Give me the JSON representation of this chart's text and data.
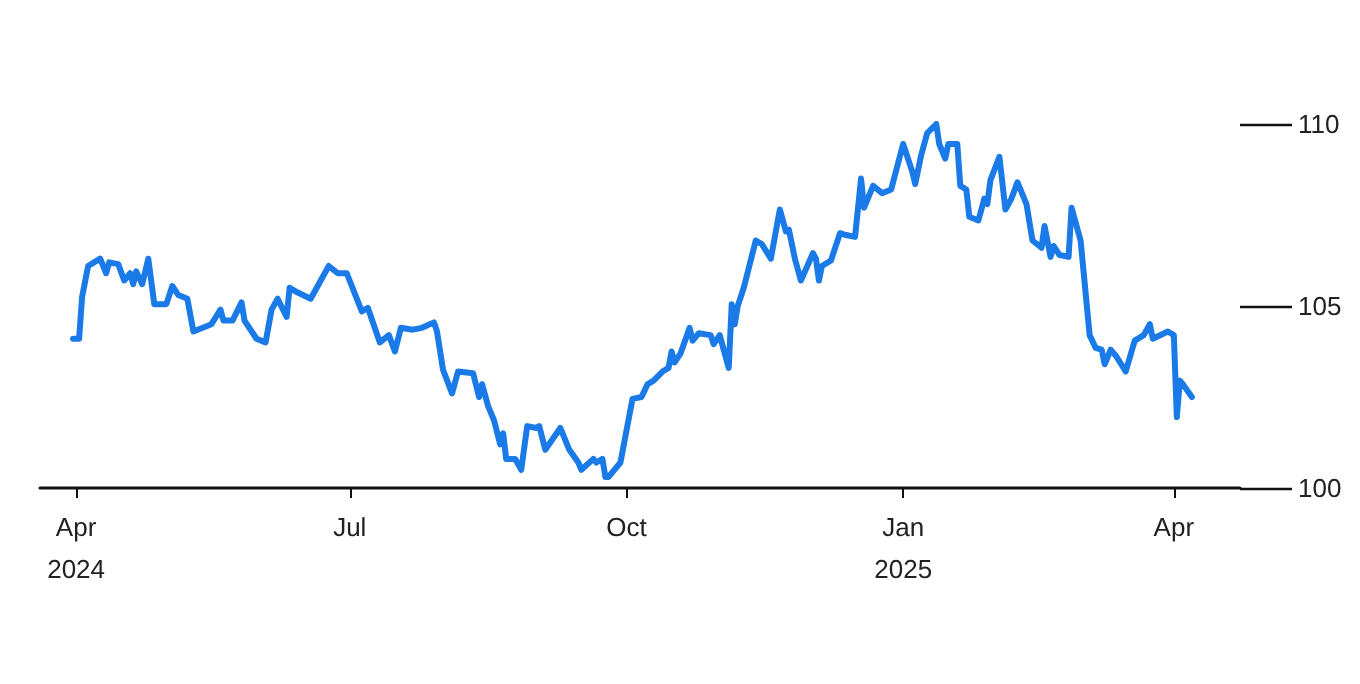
{
  "chart_data": {
    "type": "line",
    "x": [
      "2024-03-31",
      "2024-04-02",
      "2024-04-03",
      "2024-04-05",
      "2024-04-09",
      "2024-04-11",
      "2024-04-12",
      "2024-04-15",
      "2024-04-17",
      "2024-04-19",
      "2024-04-20",
      "2024-04-21",
      "2024-04-23",
      "2024-04-25",
      "2024-04-27",
      "2024-05-01",
      "2024-05-03",
      "2024-05-05",
      "2024-05-08",
      "2024-05-10",
      "2024-05-16",
      "2024-05-19",
      "2024-05-20",
      "2024-05-23",
      "2024-05-26",
      "2024-05-27",
      "2024-05-31",
      "2024-06-03",
      "2024-06-05",
      "2024-06-07",
      "2024-06-10",
      "2024-06-11",
      "2024-06-13",
      "2024-06-18",
      "2024-06-24",
      "2024-06-27",
      "2024-06-30",
      "2024-07-05",
      "2024-07-07",
      "2024-07-11",
      "2024-07-14",
      "2024-07-16",
      "2024-07-18",
      "2024-07-22",
      "2024-07-25",
      "2024-07-29",
      "2024-07-30",
      "2024-08-01",
      "2024-08-04",
      "2024-08-06",
      "2024-08-11",
      "2024-08-13",
      "2024-08-14",
      "2024-08-16",
      "2024-08-18",
      "2024-08-20",
      "2024-08-21",
      "2024-08-22",
      "2024-08-25",
      "2024-08-27",
      "2024-08-29",
      "2024-09-01",
      "2024-09-02",
      "2024-09-04",
      "2024-09-09",
      "2024-09-12",
      "2024-09-15",
      "2024-09-16",
      "2024-09-20",
      "2024-09-21",
      "2024-09-23",
      "2024-09-24",
      "2024-09-25",
      "2024-09-29",
      "2024-10-03",
      "2024-10-06",
      "2024-10-08",
      "2024-10-10",
      "2024-10-13",
      "2024-10-15",
      "2024-10-16",
      "2024-10-17",
      "2024-10-19",
      "2024-10-22",
      "2024-10-23",
      "2024-10-25",
      "2024-10-29",
      "2024-10-30",
      "2024-11-01",
      "2024-11-04",
      "2024-11-05",
      "2024-11-06",
      "2024-11-07",
      "2024-11-09",
      "2024-11-13",
      "2024-11-15",
      "2024-11-18",
      "2024-11-21",
      "2024-11-23",
      "2024-11-24",
      "2024-11-26",
      "2024-11-28",
      "2024-12-02",
      "2024-12-03",
      "2024-12-04",
      "2024-12-05",
      "2024-12-08",
      "2024-12-11",
      "2024-12-13",
      "2024-12-16",
      "2024-12-18",
      "2024-12-19",
      "2024-12-22",
      "2024-12-25",
      "2024-12-28",
      "2025-01-01",
      "2025-01-04",
      "2025-01-05",
      "2025-01-07",
      "2025-01-09",
      "2025-01-12",
      "2025-01-13",
      "2025-01-15",
      "2025-01-16",
      "2025-01-19",
      "2025-01-20",
      "2025-01-22",
      "2025-01-23",
      "2025-01-26",
      "2025-01-28",
      "2025-01-29",
      "2025-01-30",
      "2025-02-02",
      "2025-02-04",
      "2025-02-06",
      "2025-02-08",
      "2025-02-11",
      "2025-02-13",
      "2025-02-16",
      "2025-02-17",
      "2025-02-19",
      "2025-02-20",
      "2025-02-22",
      "2025-02-25",
      "2025-02-26",
      "2025-03-01",
      "2025-03-04",
      "2025-03-06",
      "2025-03-08",
      "2025-03-09",
      "2025-03-11",
      "2025-03-13",
      "2025-03-16",
      "2025-03-19",
      "2025-03-22",
      "2025-03-24",
      "2025-03-25",
      "2025-03-30",
      "2025-04-01",
      "2025-04-02",
      "2025-04-03",
      "2025-04-04",
      "2025-04-07"
    ],
    "series": [
      {
        "color": "#1a7ae8",
        "values": [
          104.1,
          104.1,
          105.25,
          106.1,
          106.3,
          105.9,
          106.2,
          106.15,
          105.7,
          105.9,
          105.6,
          105.95,
          105.6,
          106.3,
          105.05,
          105.05,
          105.55,
          105.3,
          105.2,
          104.3,
          104.5,
          104.9,
          104.6,
          104.6,
          105.1,
          104.6,
          104.1,
          104.0,
          104.9,
          105.2,
          104.7,
          105.5,
          105.4,
          105.2,
          106.1,
          105.9,
          105.9,
          104.85,
          104.95,
          104.0,
          104.2,
          103.75,
          104.4,
          104.35,
          104.4,
          104.55,
          104.3,
          103.25,
          102.6,
          103.2,
          103.15,
          102.5,
          102.85,
          102.25,
          101.85,
          101.2,
          101.5,
          100.8,
          100.8,
          100.5,
          101.7,
          101.65,
          101.7,
          101.05,
          101.65,
          101.05,
          100.7,
          100.5,
          100.8,
          100.7,
          100.8,
          100.3,
          100.3,
          100.7,
          102.45,
          102.5,
          102.85,
          102.95,
          103.2,
          103.3,
          103.75,
          103.45,
          103.7,
          104.4,
          104.05,
          104.25,
          104.2,
          103.95,
          104.2,
          103.3,
          105.05,
          104.5,
          105.0,
          105.5,
          106.8,
          106.7,
          106.3,
          107.65,
          107.05,
          107.1,
          106.3,
          105.7,
          106.45,
          106.3,
          105.7,
          106.1,
          106.25,
          107.0,
          106.95,
          106.9,
          108.5,
          107.7,
          108.3,
          108.1,
          108.2,
          109.45,
          108.7,
          108.35,
          109.15,
          109.75,
          110.0,
          109.45,
          109.05,
          109.45,
          109.45,
          108.3,
          108.2,
          107.45,
          107.35,
          107.95,
          107.8,
          108.45,
          109.1,
          107.65,
          107.95,
          108.4,
          107.8,
          106.8,
          106.6,
          107.2,
          106.35,
          106.65,
          106.4,
          106.35,
          107.7,
          106.8,
          104.2,
          103.85,
          103.8,
          103.4,
          103.8,
          103.6,
          103.2,
          104.05,
          104.2,
          104.5,
          104.1,
          104.3,
          104.2,
          101.95,
          102.95,
          102.85,
          102.5
        ]
      }
    ],
    "xlim": [
      "2024-03-20",
      "2025-04-23"
    ],
    "xticks": [
      {
        "value": "2024-04-01",
        "label": "Apr\n2024"
      },
      {
        "value": "2024-07-01",
        "label": "Jul"
      },
      {
        "value": "2024-10-01",
        "label": "Oct"
      },
      {
        "value": "2025-01-01",
        "label": "Jan\n2025"
      },
      {
        "value": "2025-04-01",
        "label": "Apr"
      }
    ],
    "ylim": [
      100,
      110
    ],
    "yticks": [
      100,
      105,
      110
    ],
    "marker": "none",
    "line_style": "solid"
  }
}
